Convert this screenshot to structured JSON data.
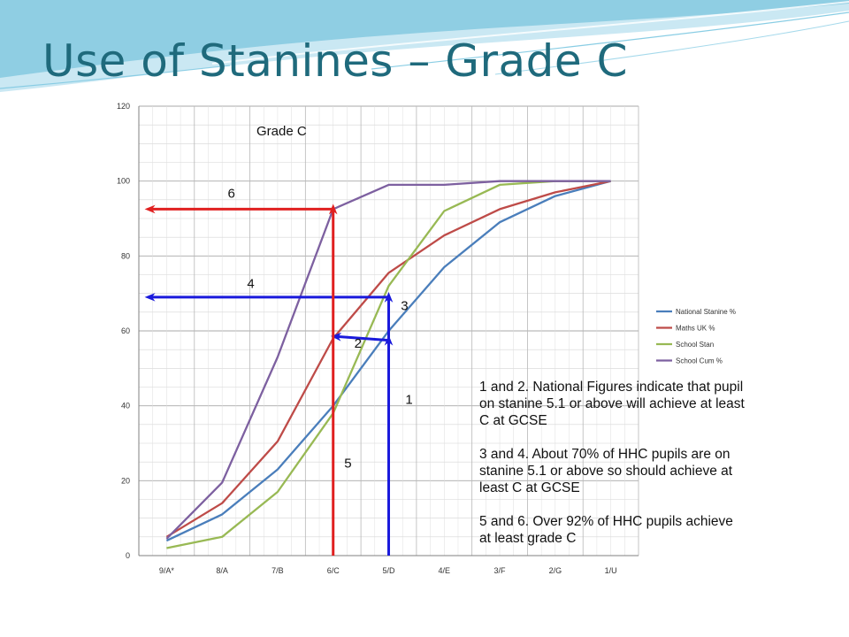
{
  "slide": {
    "title": "Use of Stanines – Grade C"
  },
  "notes": [
    "1 and 2. National Figures indicate that pupil on stanine 5.1 or above will achieve at least C at GCSE",
    "3 and 4. About 70% of HHC pupils are on stanine 5.1 or above so should achieve at least C at GCSE",
    "5 and 6. Over 92% of HHC pupils achieve at least grade C"
  ],
  "chart_data": {
    "type": "line",
    "title": "Grade C",
    "xlabel": "",
    "ylabel": "",
    "categories": [
      "9/A*",
      "8/A",
      "7/B",
      "6/C",
      "5/D",
      "4/E",
      "3/F",
      "2/G",
      "1/U"
    ],
    "ylim": [
      0,
      120
    ],
    "yticks": [
      0,
      20,
      40,
      60,
      80,
      100,
      120
    ],
    "grid": true,
    "legend_position": "right",
    "series": [
      {
        "name": "National Stanine %",
        "color": "#4a7ebb",
        "values": [
          4,
          11,
          23,
          40,
          60,
          77,
          89,
          96,
          100
        ]
      },
      {
        "name": "Maths UK %",
        "color": "#be4b48",
        "values": [
          5,
          14,
          30.5,
          58,
          75.5,
          85.5,
          92.5,
          97,
          100
        ]
      },
      {
        "name": "School Stan",
        "color": "#98b954",
        "values": [
          2,
          5,
          17,
          38,
          72,
          92,
          99,
          100,
          100
        ]
      },
      {
        "name": "School Cum %",
        "color": "#7d60a0",
        "values": [
          4.5,
          19.5,
          53,
          92.5,
          99,
          99,
          100,
          100,
          100
        ]
      }
    ],
    "annotations": {
      "lines": [
        {
          "label": "1",
          "color": "#1a1adc",
          "from": [
            5.0,
            0
          ],
          "to": [
            5.0,
            57.5
          ],
          "label_at": [
            5.3,
            40.5
          ]
        },
        {
          "label": "2",
          "color": "#1a1adc",
          "from": [
            5.0,
            57.5
          ],
          "to": [
            4.05,
            58.5
          ],
          "label_at": [
            4.38,
            55.5
          ]
        },
        {
          "label": "3",
          "color": "#1a1adc",
          "from": [
            5.0,
            57.5
          ],
          "to": [
            5.0,
            69
          ],
          "label_at": [
            5.22,
            65.5
          ]
        },
        {
          "label": "4",
          "color": "#1a1adc",
          "from": [
            5.0,
            69
          ],
          "to": [
            0.7,
            69
          ],
          "label_at": [
            2.45,
            71.5
          ]
        },
        {
          "label": "5",
          "color": "#e02020",
          "from": [
            4.0,
            0
          ],
          "to": [
            4.0,
            92.5
          ],
          "label_at": [
            4.2,
            23.5
          ]
        },
        {
          "label": "6",
          "color": "#e02020",
          "from": [
            4.0,
            92.5
          ],
          "to": [
            0.7,
            92.5
          ],
          "label_at": [
            2.1,
            95.5
          ]
        }
      ]
    }
  }
}
